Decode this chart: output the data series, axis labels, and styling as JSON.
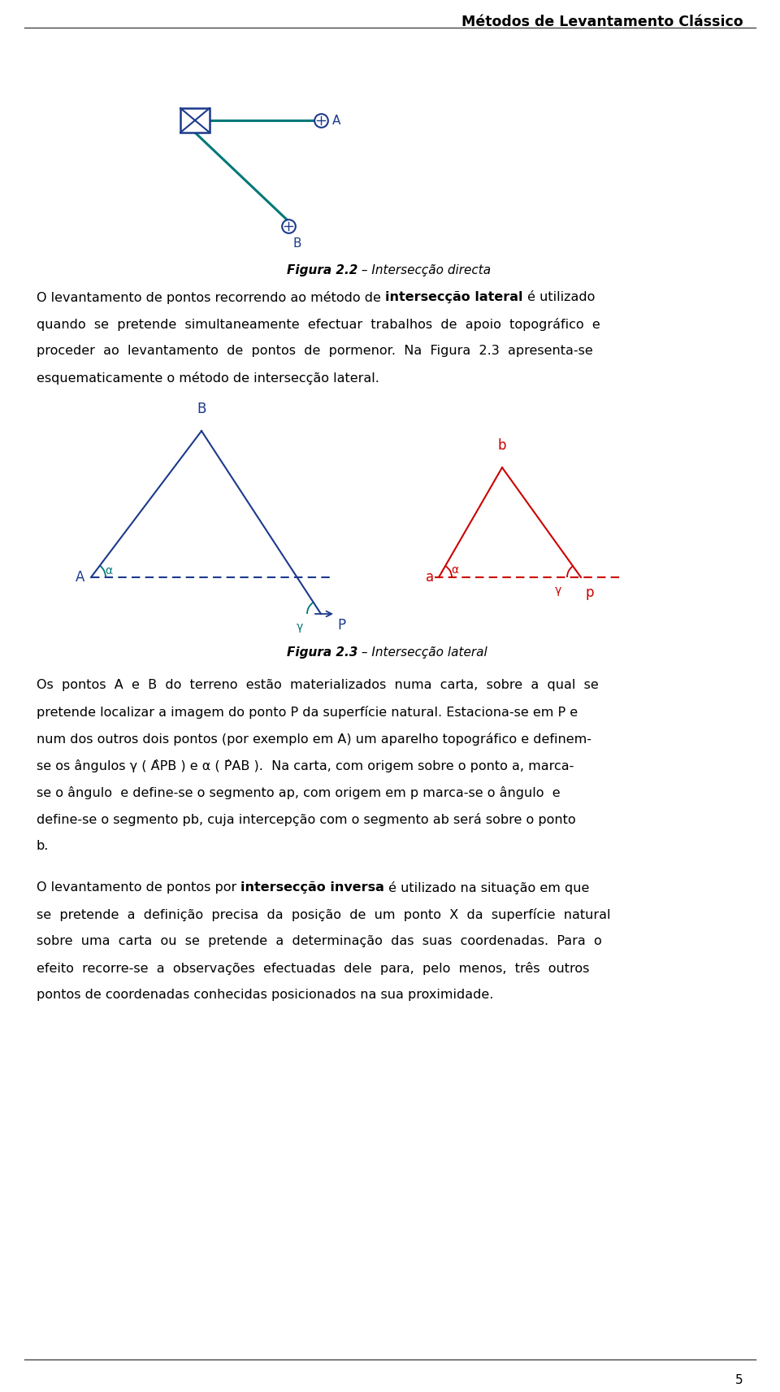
{
  "page_title": "Métodos de Levantamento Clássico",
  "page_number": "5",
  "fig22_caption_bold": "Figura 2.2",
  "fig22_caption_rest": " – Intersecção directa",
  "fig23_caption_bold": "Figura 2.3",
  "fig23_caption_rest": " – Intersecção lateral",
  "bg_color": "#ffffff",
  "text_color": "#000000",
  "dark_blue": "#1c3a8c",
  "teal_color": "#007070",
  "red_color": "#cc0000",
  "teal_green": "#007878",
  "p1_lines": [
    "O levantamento de pontos recorrendo ao método de {bold}intersecção lateral{/bold} é utilizado",
    "quando  se  pretende  simultaneamente  efectuar  trabalhos  de  apoio  topográfico  e",
    "proceder  ao  levantamento  de  pontos  de  pormenor.  Na  Figura  2.3  apresenta-se",
    "esquematicamente o método de intersecção lateral."
  ],
  "p2_lines": [
    "Os  pontos  A  e  B  do  terreno  estão  materializados  numa  carta,  sobre  a  qual  se",
    "pretende localizar a imagem do ponto P da superfície natural. Estaciona-se em P e",
    "num dos outros dois pontos (por exemplo em A) um aparelho topográfico e definem-",
    "se os ângulos γ ( ÂPB ) e α ( P̂AB ).  Na carta, com origem sobre o ponto a, marca-",
    "se o ângulo  e define-se o segmento ap, com origem em p marca-se o ângulo  e",
    "define-se o segmento pb, cuja intercepção com o segmento ab será sobre o ponto",
    "b."
  ],
  "p3_lines": [
    "O levantamento de pontos por {bold}intersecção inversa{/bold} é utilizado na situação em que",
    "se  pretende  a  definição  precisa  da  posição  de  um  ponto  X  da  superfície  natural",
    "sobre  uma  carta  ou  se  pretende  a  determinação  das  suas  coordenadas.  Para  o",
    "efeito  recorre-se  a  observações  efectuadas  dele  para,  pelo  menos,  três  outros",
    "pontos de coordenadas conhecidas posicionados na sua proximidade."
  ]
}
